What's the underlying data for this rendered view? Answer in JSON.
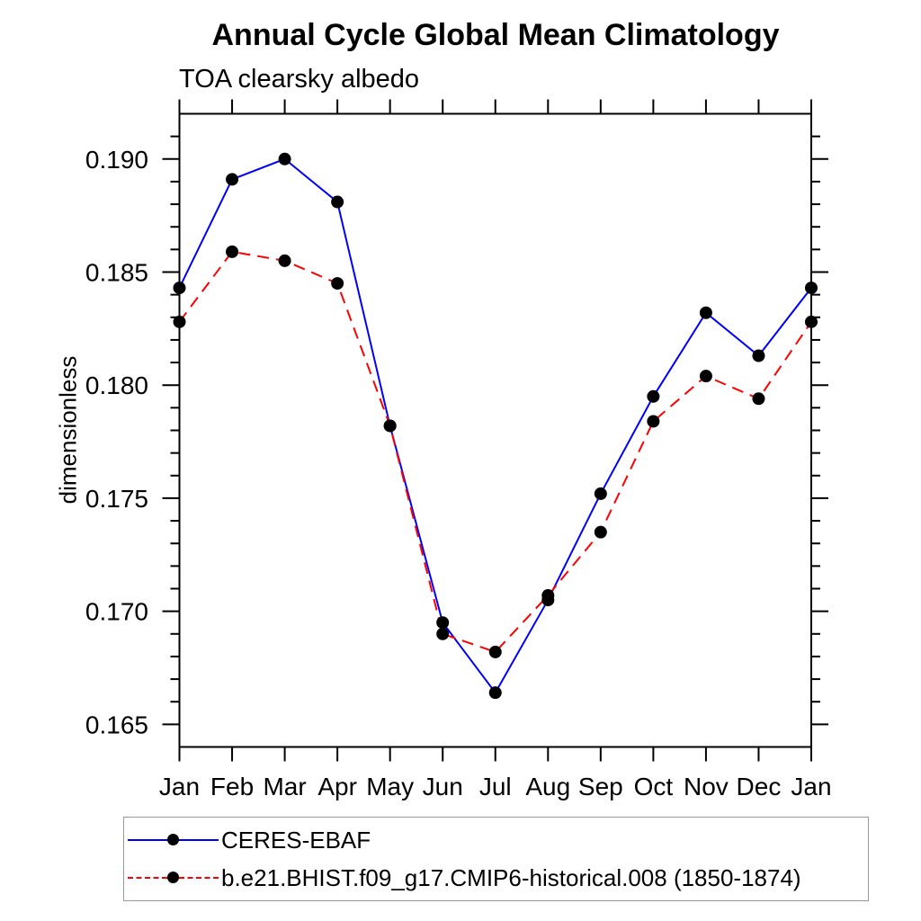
{
  "header": {
    "title": "Annual Cycle Global Mean Climatology",
    "subtitle": "TOA clearsky albedo"
  },
  "chart_data": {
    "type": "line",
    "title": "Annual Cycle Global Mean Climatology",
    "subtitle": "TOA clearsky albedo",
    "xlabel": "",
    "ylabel": "dimensionless",
    "categories": [
      "Jan",
      "Feb",
      "Mar",
      "Apr",
      "May",
      "Jun",
      "Jul",
      "Aug",
      "Sep",
      "Oct",
      "Nov",
      "Dec",
      "Jan"
    ],
    "ylim": [
      0.164,
      0.192
    ],
    "yticks_major": [
      0.165,
      0.17,
      0.175,
      0.18,
      0.185,
      0.19
    ],
    "ytick_labels": [
      "0.165",
      "0.170",
      "0.175",
      "0.180",
      "0.185",
      "0.190"
    ],
    "ytick_minor_step": 0.001,
    "grid": false,
    "legend_position": "bottom-left",
    "axis_color": "#000000",
    "marker_color": "#000000",
    "marker_radius": 7,
    "series": [
      {
        "name": "CERES-EBAF",
        "color": "#0000ff",
        "line_style": "solid",
        "values": [
          0.1843,
          0.1891,
          0.19,
          0.1881,
          0.1782,
          0.1695,
          0.1664,
          0.1705,
          0.1752,
          0.1795,
          0.1832,
          0.1813,
          0.1843
        ]
      },
      {
        "name": "b.e21.BHIST.f09_g17.CMIP6-historical.008 (1850-1874)",
        "color": "#ff0000",
        "line_style": "dashed",
        "values": [
          0.1828,
          0.1859,
          0.1855,
          0.1845,
          0.1782,
          0.169,
          0.1682,
          0.1707,
          0.1735,
          0.1784,
          0.1804,
          0.1794,
          0.1828
        ]
      }
    ]
  }
}
